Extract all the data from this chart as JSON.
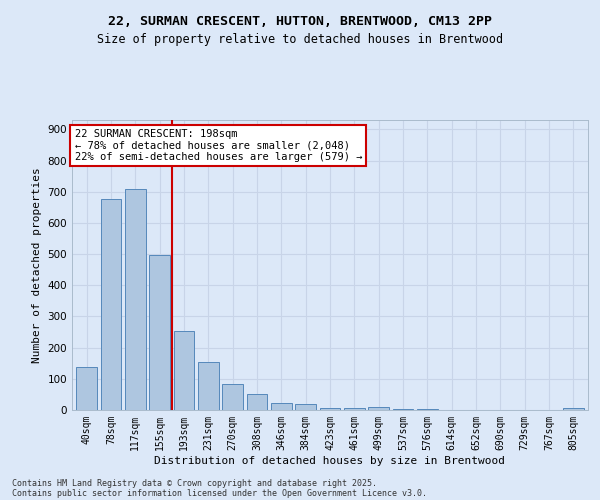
{
  "title_line1": "22, SURMAN CRESCENT, HUTTON, BRENTWOOD, CM13 2PP",
  "title_line2": "Size of property relative to detached houses in Brentwood",
  "xlabel": "Distribution of detached houses by size in Brentwood",
  "ylabel": "Number of detached properties",
  "categories": [
    "40sqm",
    "78sqm",
    "117sqm",
    "155sqm",
    "193sqm",
    "231sqm",
    "270sqm",
    "308sqm",
    "346sqm",
    "384sqm",
    "423sqm",
    "461sqm",
    "499sqm",
    "537sqm",
    "576sqm",
    "614sqm",
    "652sqm",
    "690sqm",
    "729sqm",
    "767sqm",
    "805sqm"
  ],
  "values": [
    137,
    678,
    710,
    497,
    253,
    155,
    84,
    50,
    22,
    18,
    8,
    5,
    10,
    3,
    2,
    1,
    1,
    0,
    0,
    0,
    8
  ],
  "bar_color": "#aec6e0",
  "bar_edge_color": "#5588bb",
  "vline_color": "#cc0000",
  "annotation_line1": "22 SURMAN CRESCENT: 198sqm",
  "annotation_line2": "← 78% of detached houses are smaller (2,048)",
  "annotation_line3": "22% of semi-detached houses are larger (579) →",
  "annotation_box_color": "white",
  "annotation_box_edge": "#cc0000",
  "ylim": [
    0,
    930
  ],
  "yticks": [
    0,
    100,
    200,
    300,
    400,
    500,
    600,
    700,
    800,
    900
  ],
  "grid_color": "#c8d4e8",
  "background_color": "#dce8f8",
  "axes_bg_color": "#dce8f8",
  "footer_line1": "Contains HM Land Registry data © Crown copyright and database right 2025.",
  "footer_line2": "Contains public sector information licensed under the Open Government Licence v3.0.",
  "title_fontsize": 9.5,
  "subtitle_fontsize": 8.5,
  "tick_fontsize": 7,
  "ylabel_fontsize": 8,
  "xlabel_fontsize": 8,
  "annotation_fontsize": 7.5,
  "footer_fontsize": 6
}
